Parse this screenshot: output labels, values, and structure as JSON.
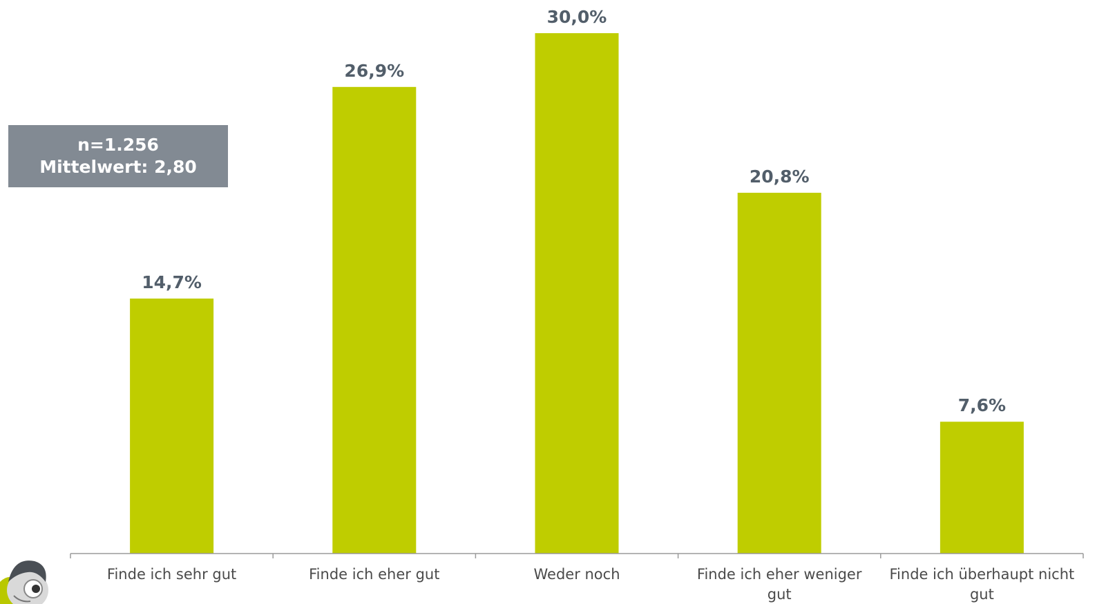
{
  "chart_data": {
    "type": "bar",
    "categories": [
      [
        "Finde ich sehr gut"
      ],
      [
        "Finde ich eher gut"
      ],
      [
        "Weder noch"
      ],
      [
        "Finde ich eher weniger",
        "gut"
      ],
      [
        "Finde ich überhaupt nicht",
        "gut"
      ]
    ],
    "values": [
      14.7,
      26.9,
      30.0,
      20.8,
      7.6
    ],
    "value_labels": [
      "14,7%",
      "26,9%",
      "30,0%",
      "20,8%",
      "7,6%"
    ],
    "title": "",
    "xlabel": "",
    "ylabel": "",
    "ylim": [
      0,
      30.0
    ],
    "grid": false,
    "bar_color": "#bfcd00",
    "label_color": "#525e6a",
    "axis_color": "#9a9a9a"
  },
  "info_box": {
    "line1": "n=1.256",
    "line2": "Mittelwert: 2,80",
    "background": "#828a93"
  }
}
